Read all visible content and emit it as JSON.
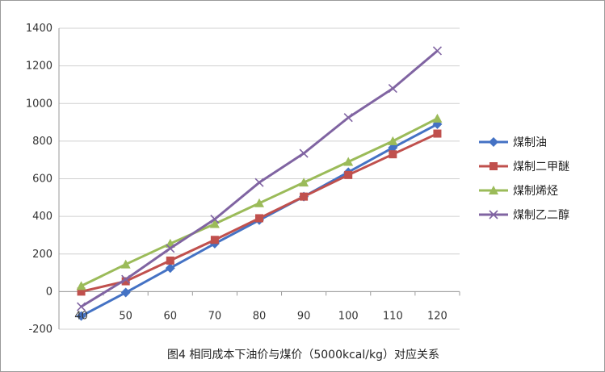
{
  "caption": "图4 相同成本下油价与煤价（5000kcal/kg）对应关系",
  "chart_data": {
    "type": "line",
    "title": "",
    "xlabel": "",
    "ylabel": "",
    "x": [
      40,
      50,
      60,
      70,
      80,
      90,
      100,
      110,
      120
    ],
    "ylim": [
      -200,
      1400
    ],
    "yticks": [
      -200,
      0,
      200,
      400,
      600,
      800,
      1000,
      1200,
      1400
    ],
    "grid": "horizontal",
    "legend_position": "right",
    "series": [
      {
        "name": "煤制油",
        "color": "#4472C4",
        "marker": "diamond",
        "values": [
          -130,
          -5,
          125,
          255,
          380,
          505,
          635,
          765,
          890
        ]
      },
      {
        "name": "煤制二甲醚",
        "color": "#C0504D",
        "marker": "square",
        "values": [
          0,
          55,
          165,
          275,
          390,
          505,
          620,
          730,
          840
        ]
      },
      {
        "name": "煤制烯烃",
        "color": "#9BBB59",
        "marker": "triangle",
        "values": [
          30,
          145,
          255,
          360,
          470,
          580,
          690,
          800,
          920
        ]
      },
      {
        "name": "煤制乙二醇",
        "color": "#8064A2",
        "marker": "x",
        "values": [
          -80,
          65,
          230,
          385,
          580,
          735,
          925,
          1080,
          1280
        ]
      }
    ]
  }
}
